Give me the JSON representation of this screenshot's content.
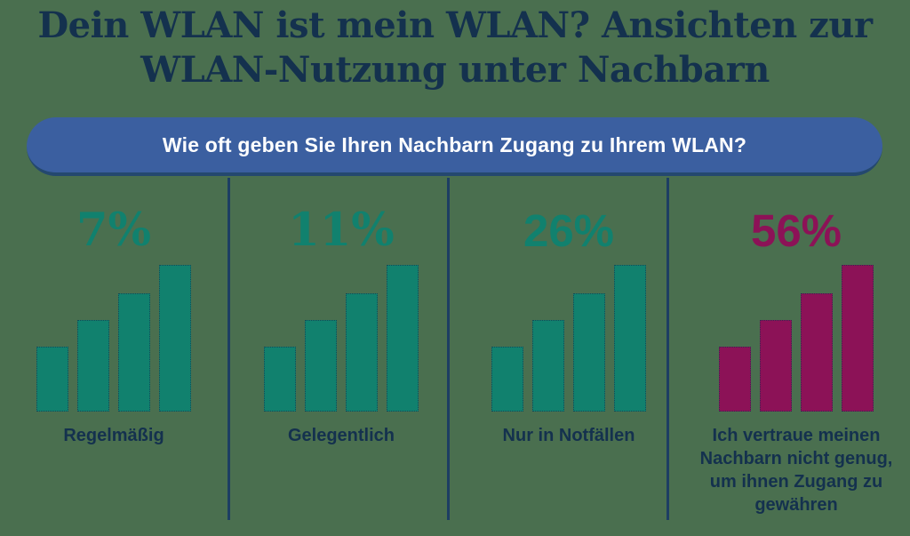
{
  "title": {
    "line1": "Dein WLAN ist mein WLAN? Ansichten zur",
    "line2": "WLAN-Nutzung unter Nachbarn"
  },
  "question_banner": {
    "text": "Wie oft geben Sie Ihren Nachbarn Zugang zu Ihrem WLAN?"
  },
  "columns": [
    {
      "percent": "7%",
      "label": "Regelmäßig"
    },
    {
      "percent": "11%",
      "label": "Gelegentlich"
    },
    {
      "percent": "26%",
      "label": "Nur in Notfällen"
    },
    {
      "percent": "56%",
      "label": "Ich vertraue meinen Nachbarn nicht genug, um ihnen Zugang zu gewähren"
    }
  ],
  "theme": {
    "background": "#4a6f4f",
    "title_color": "#14314e",
    "banner_blue": "#3b5fa0",
    "banner_shadow": "#24486f",
    "banner_text": "#ffffff",
    "teal": "#11816e",
    "magenta": "#8c1257",
    "divider": "#1d3e63",
    "label_color": "#14314e"
  },
  "chart_data": {
    "type": "bar",
    "title": "Dein WLAN ist mein WLAN? Ansichten zur WLAN-Nutzung unter Nachbarn",
    "question": "Wie oft geben Sie Ihren Nachbarn Zugang zu Ihrem WLAN?",
    "categories": [
      "Regelmäßig",
      "Gelegentlich",
      "Nur in Notfällen",
      "Ich vertraue meinen Nachbarn nicht genug, um ihnen Zugang zu gewähren"
    ],
    "values": [
      7,
      11,
      26,
      56
    ],
    "unit": "%",
    "series_colors": [
      "#11816e",
      "#11816e",
      "#11816e",
      "#8c1257"
    ],
    "legend": false,
    "grid": false,
    "note": "bar icons in each column are decorative ascending-bar glyphs, not value-scaled"
  }
}
